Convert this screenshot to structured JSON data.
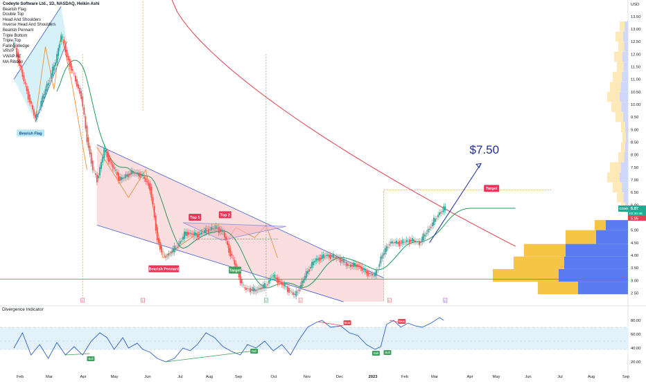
{
  "chart_data": [
    {
      "type": "candlestick",
      "title": "Codeyte Software Ltd., 1D, NASDAQ, Heikin Ashi",
      "indicators": [
        "Bearish Flag",
        "Double Top",
        "Head And Shoulders",
        "Inverse Head And Shoulders",
        "Bearish Pennant",
        "Triple Bottom",
        "Triple Top",
        "Falling Wedge",
        "VRVP",
        "VWAP AE",
        "MA Ribbon"
      ],
      "y_axis_unit": "USD",
      "ylim": [
        2.1,
        14.1
      ],
      "yticks": [
        2.5,
        3.0,
        3.5,
        4.0,
        4.5,
        5.0,
        5.5,
        6.0,
        6.5,
        7.0,
        7.5,
        8.0,
        8.5,
        9.0,
        9.5,
        10.0,
        10.5,
        11.0,
        11.5,
        12.0,
        12.5,
        13.0,
        13.5
      ],
      "ytick_labels": [
        "2.50",
        "3.00",
        "3.50",
        "4.00",
        "4.50",
        "5.00",
        "5.50",
        "6.00",
        "6.50",
        "7.00",
        "7.50",
        "8.00",
        "8.50",
        "9.00",
        "9.50",
        "10.00",
        "10.50",
        "11.00",
        "11.50",
        "12.00",
        "12.50",
        "13.00",
        "13.50"
      ],
      "x_labels": [
        "Feb",
        "Mar",
        "Apr",
        "May",
        "Jun",
        "Jul",
        "Aug",
        "Sep",
        "Oct",
        "Nov",
        "Dec",
        "2023",
        "Feb",
        "Mar",
        "Apr",
        "May",
        "Jun",
        "Jul",
        "Aug",
        "Sep"
      ],
      "price_path": [
        [
          0,
          12.4
        ],
        [
          8,
          10.7
        ],
        [
          15,
          9.4
        ],
        [
          22,
          10.6
        ],
        [
          29,
          11.7
        ],
        [
          33,
          12.8
        ],
        [
          37,
          11.9
        ],
        [
          42,
          11.1
        ],
        [
          47,
          10.3
        ],
        [
          51,
          8.6
        ],
        [
          55,
          7.4
        ],
        [
          58,
          7.0
        ],
        [
          63,
          8.2
        ],
        [
          68,
          7.6
        ],
        [
          74,
          7.0
        ],
        [
          82,
          7.3
        ],
        [
          89,
          7.2
        ],
        [
          95,
          6.7
        ],
        [
          97,
          5.9
        ],
        [
          100,
          4.6
        ],
        [
          105,
          3.9
        ],
        [
          113,
          4.3
        ],
        [
          120,
          4.9
        ],
        [
          128,
          4.8
        ],
        [
          135,
          5.0
        ],
        [
          141,
          5.1
        ],
        [
          146,
          4.9
        ],
        [
          150,
          4.2
        ],
        [
          155,
          3.5
        ],
        [
          160,
          2.7
        ],
        [
          168,
          2.6
        ],
        [
          176,
          2.8
        ],
        [
          180,
          3.2
        ],
        [
          186,
          2.9
        ],
        [
          192,
          2.6
        ],
        [
          196,
          2.4
        ],
        [
          200,
          2.8
        ],
        [
          205,
          3.4
        ],
        [
          210,
          3.8
        ],
        [
          218,
          4.0
        ],
        [
          226,
          3.9
        ],
        [
          233,
          3.6
        ],
        [
          240,
          3.6
        ],
        [
          246,
          3.3
        ],
        [
          252,
          3.2
        ],
        [
          256,
          3.9
        ],
        [
          262,
          4.5
        ],
        [
          270,
          4.5
        ],
        [
          277,
          4.6
        ],
        [
          283,
          4.5
        ],
        [
          290,
          5.1
        ],
        [
          297,
          5.7
        ],
        [
          301,
          5.87
        ]
      ],
      "last_price": "5.87",
      "ticker": "CGNT",
      "countdown": "02:30:46",
      "prev_close": "5.85",
      "forecast_label": "$7.50",
      "annotations": [
        "Bearish Flag",
        "Top 1",
        "Top 2",
        "Bearish Pennant",
        "Target",
        "Target"
      ],
      "events": [
        "E",
        "E",
        "E",
        "E",
        "E",
        "E",
        "E"
      ],
      "horizontal_line": 3.05,
      "target_level": 6.6
    },
    {
      "type": "line",
      "title": "Divergence Indicator",
      "ylim": [
        15,
        88
      ],
      "yticks": [
        20,
        40,
        60,
        80
      ],
      "ytick_labels": [
        "20.00",
        "40.00",
        "60.00",
        "80.00"
      ],
      "band": [
        38,
        70
      ],
      "series": [
        {
          "values": [
            [
              0,
              40
            ],
            [
              6,
              62
            ],
            [
              12,
              30
            ],
            [
              18,
              45
            ],
            [
              24,
              25
            ],
            [
              30,
              48
            ],
            [
              36,
              30
            ],
            [
              42,
              42
            ],
            [
              48,
              30
            ],
            [
              54,
              50
            ],
            [
              60,
              62
            ],
            [
              65,
              55
            ],
            [
              70,
              38
            ],
            [
              76,
              55
            ],
            [
              80,
              40
            ],
            [
              86,
              47
            ],
            [
              90,
              38
            ],
            [
              95,
              34
            ],
            [
              100,
              25
            ],
            [
              106,
              20
            ],
            [
              112,
              25
            ],
            [
              118,
              40
            ],
            [
              123,
              36
            ],
            [
              128,
              45
            ],
            [
              134,
              62
            ],
            [
              140,
              55
            ],
            [
              146,
              42
            ],
            [
              152,
              35
            ],
            [
              158,
              30
            ],
            [
              163,
              45
            ],
            [
              169,
              40
            ],
            [
              175,
              50
            ],
            [
              181,
              36
            ],
            [
              187,
              45
            ],
            [
              193,
              30
            ],
            [
              199,
              52
            ],
            [
              205,
              70
            ],
            [
              211,
              77
            ],
            [
              215,
              80
            ],
            [
              221,
              70
            ],
            [
              228,
              72
            ],
            [
              234,
              62
            ],
            [
              240,
              58
            ],
            [
              246,
              45
            ],
            [
              252,
              38
            ],
            [
              256,
              42
            ],
            [
              260,
              74
            ],
            [
              265,
              80
            ],
            [
              270,
              70
            ],
            [
              275,
              76
            ],
            [
              280,
              72
            ],
            [
              285,
              70
            ],
            [
              291,
              76
            ],
            [
              297,
              84
            ],
            [
              300,
              80
            ]
          ]
        }
      ],
      "labels": [
        "Bull",
        "Bull",
        "Bear",
        "Bull",
        "Bull",
        "Bear"
      ]
    }
  ]
}
